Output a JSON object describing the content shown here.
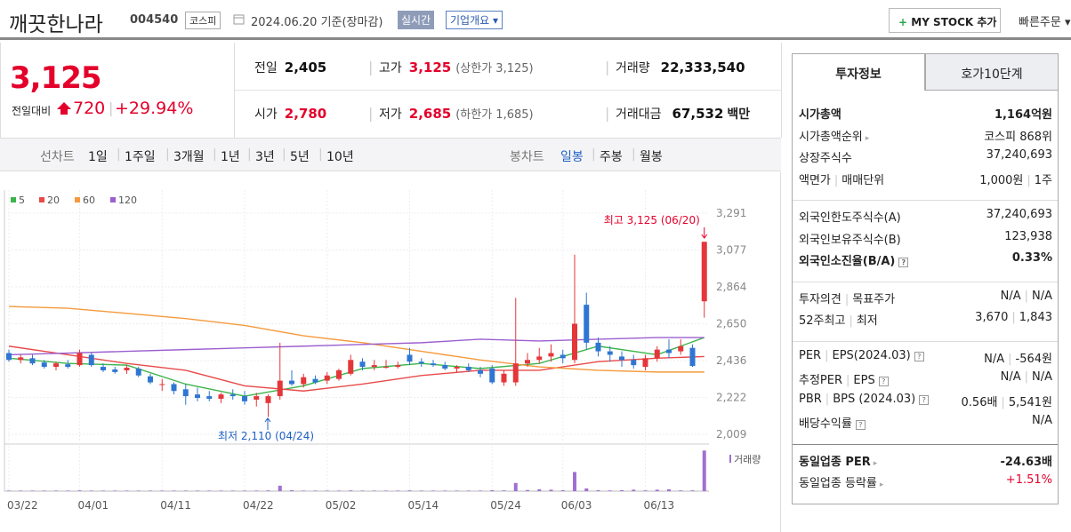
{
  "header": {
    "name": "깨끗한나라",
    "code": "004540",
    "market": "코스피",
    "date": "2024.06.20 기준(장마감)",
    "realtime": "실시간",
    "company_info": "기업개요",
    "mystock": "MY STOCK 추가",
    "quick_order": "빠른주문"
  },
  "price": {
    "current": "3,125",
    "change_label": "전일대비",
    "change": "720",
    "rate": "+29.94%"
  },
  "quotes": [
    [
      {
        "label": "전일",
        "value": "2,405",
        "color": "#111"
      },
      {
        "label": "고가",
        "value": "3,125",
        "note": "(상한가 3,125)",
        "color": "#e4002b"
      },
      {
        "label": "거래량",
        "value": "22,333,540",
        "color": "#111"
      }
    ],
    [
      {
        "label": "시가",
        "value": "2,780",
        "color": "#e4002b"
      },
      {
        "label": "저가",
        "value": "2,685",
        "note": "(하한가 1,685)",
        "color": "#e4002b"
      },
      {
        "label": "거래대금",
        "value": "67,532",
        "unit": "백만",
        "color": "#111"
      }
    ]
  ],
  "toolbar": {
    "line_label": "선차트",
    "line_periods": [
      "1일",
      "1주일",
      "3개월",
      "1년",
      "3년",
      "5년",
      "10년"
    ],
    "candle_label": "봉차트",
    "candle_periods": [
      "일봉",
      "주봉",
      "월봉"
    ],
    "active_candle": 0
  },
  "chart_data": {
    "type": "candlestick",
    "categories": [
      "03/22",
      null,
      null,
      null,
      null,
      null,
      "04/01",
      null,
      null,
      null,
      null,
      null,
      null,
      "04/11",
      null,
      null,
      null,
      null,
      null,
      null,
      "04/22",
      null,
      null,
      null,
      null,
      null,
      null,
      "05/02",
      null,
      null,
      null,
      null,
      null,
      null,
      "05/14",
      null,
      null,
      null,
      null,
      null,
      null,
      "05/24",
      null,
      null,
      null,
      null,
      null,
      "06/03",
      null,
      null,
      null,
      null,
      null,
      null,
      "06/13",
      null,
      null,
      null,
      null,
      null
    ],
    "candles": [
      [
        2480,
        2500,
        2430,
        2440
      ],
      [
        2440,
        2470,
        2420,
        2455
      ],
      [
        2450,
        2470,
        2410,
        2420
      ],
      [
        2425,
        2440,
        2390,
        2400
      ],
      [
        2400,
        2430,
        2380,
        2420
      ],
      [
        2415,
        2440,
        2390,
        2400
      ],
      [
        2410,
        2500,
        2400,
        2480
      ],
      [
        2470,
        2480,
        2400,
        2410
      ],
      [
        2400,
        2420,
        2370,
        2380
      ],
      [
        2385,
        2400,
        2360,
        2370
      ],
      [
        2380,
        2410,
        2360,
        2395
      ],
      [
        2390,
        2400,
        2340,
        2350
      ],
      [
        2345,
        2360,
        2300,
        2310
      ],
      [
        2300,
        2330,
        2260,
        2300
      ],
      [
        2300,
        2310,
        2240,
        2260
      ],
      [
        2270,
        2300,
        2180,
        2230
      ],
      [
        2240,
        2280,
        2200,
        2220
      ],
      [
        2230,
        2260,
        2200,
        2215
      ],
      [
        2215,
        2250,
        2190,
        2240
      ],
      [
        2240,
        2270,
        2210,
        2230
      ],
      [
        2230,
        2260,
        2180,
        2200
      ],
      [
        2210,
        2250,
        2170,
        2230
      ],
      [
        2190,
        2240,
        2110,
        2230
      ],
      [
        2230,
        2540,
        2210,
        2320
      ],
      [
        2320,
        2380,
        2290,
        2300
      ],
      [
        2300,
        2360,
        2280,
        2340
      ],
      [
        2330,
        2350,
        2300,
        2310
      ],
      [
        2320,
        2370,
        2300,
        2350
      ],
      [
        2330,
        2390,
        2320,
        2380
      ],
      [
        2360,
        2470,
        2350,
        2440
      ],
      [
        2430,
        2450,
        2380,
        2400
      ],
      [
        2400,
        2440,
        2380,
        2410
      ],
      [
        2400,
        2440,
        2390,
        2400
      ],
      [
        2400,
        2430,
        2390,
        2410
      ],
      [
        2470,
        2510,
        2410,
        2430
      ],
      [
        2430,
        2450,
        2400,
        2420
      ],
      [
        2420,
        2440,
        2400,
        2410
      ],
      [
        2410,
        2430,
        2380,
        2390
      ],
      [
        2390,
        2410,
        2370,
        2400
      ],
      [
        2400,
        2420,
        2370,
        2380
      ],
      [
        2380,
        2400,
        2340,
        2360
      ],
      [
        2390,
        2410,
        2300,
        2310
      ],
      [
        2310,
        2380,
        2290,
        2360
      ],
      [
        2310,
        2800,
        2290,
        2420
      ],
      [
        2420,
        2480,
        2400,
        2440
      ],
      [
        2440,
        2510,
        2420,
        2460
      ],
      [
        2460,
        2530,
        2430,
        2480
      ],
      [
        2470,
        2500,
        2420,
        2450
      ],
      [
        2440,
        3050,
        2420,
        2650
      ],
      [
        2760,
        2830,
        2500,
        2540
      ],
      [
        2540,
        2570,
        2460,
        2490
      ],
      [
        2490,
        2520,
        2430,
        2470
      ],
      [
        2460,
        2490,
        2400,
        2440
      ],
      [
        2440,
        2470,
        2390,
        2410
      ],
      [
        2400,
        2470,
        2380,
        2450
      ],
      [
        2450,
        2520,
        2430,
        2500
      ],
      [
        2500,
        2560,
        2450,
        2480
      ],
      [
        2490,
        2560,
        2470,
        2520
      ],
      [
        2510,
        2530,
        2400,
        2405
      ],
      [
        2780,
        3125,
        2685,
        3125
      ]
    ],
    "up_color": "#e5363a",
    "down_color": "#2f76d2",
    "ma": [
      {
        "name": "5",
        "color": "#3cb44b",
        "x": [
          0,
          5,
          10,
          15,
          20,
          25,
          30,
          35,
          40,
          45,
          50,
          55,
          59
        ],
        "values": [
          2450,
          2420,
          2410,
          2300,
          2230,
          2290,
          2390,
          2420,
          2390,
          2420,
          2520,
          2470,
          2570
        ]
      },
      {
        "name": "20",
        "color": "#e84a4a",
        "x": [
          0,
          5,
          10,
          15,
          20,
          25,
          30,
          35,
          40,
          45,
          50,
          55,
          59
        ],
        "values": [
          2520,
          2470,
          2420,
          2380,
          2290,
          2260,
          2300,
          2350,
          2380,
          2380,
          2430,
          2450,
          2460
        ]
      },
      {
        "name": "60",
        "color": "#f59a3c",
        "x": [
          0,
          5,
          10,
          15,
          20,
          25,
          30,
          35,
          40,
          45,
          50,
          55,
          59
        ],
        "values": [
          2750,
          2740,
          2710,
          2680,
          2640,
          2580,
          2540,
          2490,
          2440,
          2400,
          2380,
          2370,
          2370
        ]
      },
      {
        "name": "120",
        "color": "#9b5fd0",
        "x": [
          0,
          5,
          10,
          15,
          20,
          25,
          30,
          35,
          40,
          45,
          50,
          55,
          59
        ],
        "values": [
          2470,
          2480,
          2490,
          2500,
          2510,
          2520,
          2530,
          2540,
          2560,
          2550,
          2560,
          2570,
          2570
        ]
      }
    ],
    "ylim": [
      2009,
      3291
    ],
    "yticks": [
      {
        "value": 3291,
        "label": "3,291"
      },
      {
        "value": 3077,
        "label": "3,077"
      },
      {
        "value": 2864,
        "label": "2,864"
      },
      {
        "value": 2650,
        "label": "2,650"
      },
      {
        "value": 2436,
        "label": "2,436"
      },
      {
        "value": 2222,
        "label": "2,222"
      },
      {
        "value": 2009,
        "label": "2,009"
      }
    ],
    "high_annotation": "최고 3,125 (06/20)",
    "low_annotation": "최저 2,110 (04/24)",
    "volume_label": "거래량",
    "volume_color": "#a070d0",
    "volume": [
      0.3,
      0.3,
      0.3,
      0.3,
      0.3,
      0.3,
      0.4,
      0.3,
      0.3,
      0.3,
      0.3,
      0.3,
      0.3,
      0.3,
      0.3,
      0.3,
      0.3,
      0.3,
      0.3,
      0.3,
      0.3,
      0.3,
      0.4,
      3.0,
      0.5,
      0.3,
      0.3,
      0.3,
      0.3,
      0.4,
      0.3,
      0.3,
      0.3,
      0.3,
      0.4,
      0.3,
      0.3,
      0.3,
      0.3,
      0.3,
      0.3,
      0.5,
      0.4,
      4.5,
      0.6,
      1.0,
      0.8,
      0.5,
      10.5,
      1.5,
      0.5,
      0.4,
      0.5,
      0.8,
      0.4,
      0.8,
      1.0,
      0.4,
      0.4,
      22.3
    ]
  },
  "invest": {
    "tabs": [
      "투자정보",
      "호가10단계"
    ],
    "groups": [
      [
        {
          "labels": [
            "시가총액"
          ],
          "values": [
            "1,164억원"
          ],
          "bold": true
        },
        {
          "labels": [
            "시가총액순위"
          ],
          "values": [
            "코스피 868위"
          ],
          "arrow": true
        },
        {
          "labels": [
            "상장주식수"
          ],
          "values": [
            "37,240,693"
          ]
        },
        {
          "labels": [
            "액면가",
            "매매단위"
          ],
          "values": [
            "1,000원",
            "1주"
          ]
        }
      ],
      [
        {
          "labels": [
            "외국인한도주식수(A)"
          ],
          "values": [
            "37,240,693"
          ]
        },
        {
          "labels": [
            "외국인보유주식수(B)"
          ],
          "values": [
            "123,938"
          ]
        },
        {
          "labels": [
            "외국인소진율(B/A)"
          ],
          "values": [
            "0.33%"
          ],
          "bold": true,
          "help": true
        }
      ],
      [
        {
          "labels": [
            "투자의견",
            "목표주가"
          ],
          "values": [
            "N/A",
            "N/A"
          ]
        },
        {
          "labels": [
            "52주최고",
            "최저"
          ],
          "values": [
            "3,670",
            "1,843"
          ]
        }
      ],
      [
        {
          "labels": [
            "PER",
            "EPS(2024.03)"
          ],
          "values": [
            "N/A",
            "-564원"
          ],
          "help": true
        },
        {
          "labels": [
            "추정PER",
            "EPS"
          ],
          "values": [
            "N/A",
            "N/A"
          ],
          "help": true
        },
        {
          "labels": [
            "PBR",
            "BPS (2024.03)"
          ],
          "values": [
            "0.56배",
            "5,541원"
          ],
          "help": true
        },
        {
          "labels": [
            "배당수익률"
          ],
          "values": [
            "N/A"
          ],
          "help": true
        }
      ],
      [
        {
          "labels": [
            "동일업종 PER"
          ],
          "values": [
            "-24.63배"
          ],
          "bold": true,
          "arrow": true
        },
        {
          "labels": [
            "동일업종 등락률"
          ],
          "values": [
            "+1.51%"
          ],
          "arrow": true,
          "red": true
        }
      ]
    ]
  }
}
